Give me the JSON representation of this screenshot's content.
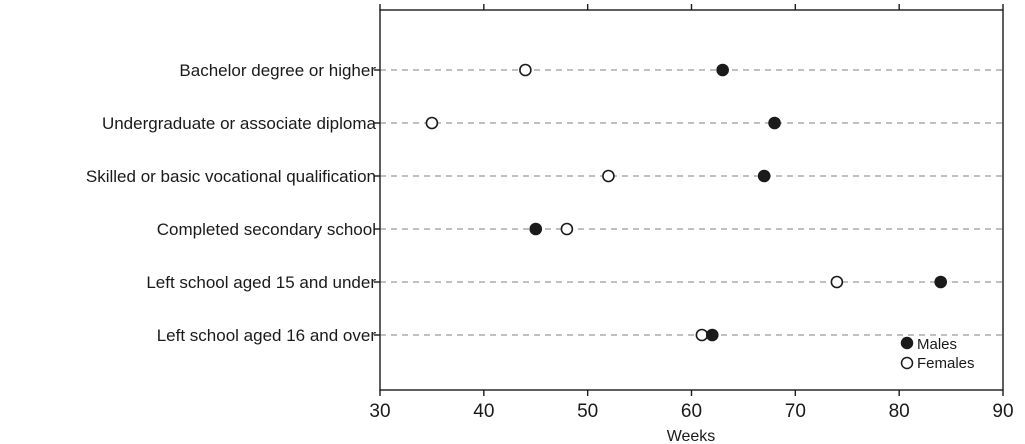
{
  "chart_data": {
    "type": "scatter",
    "title": "",
    "xlabel": "Weeks",
    "ylabel": "",
    "xlim": [
      30,
      90
    ],
    "xticks": [
      30,
      40,
      50,
      60,
      70,
      80,
      90
    ],
    "grid": "horizontal dashed",
    "legend_position": "bottom-right",
    "categories": [
      "Bachelor degree or higher",
      "Undergraduate or associate diploma",
      "Skilled or basic vocational qualification",
      "Completed secondary school",
      "Left school aged 15 and under",
      "Left school aged 16 and over"
    ],
    "series": [
      {
        "name": "Males",
        "marker": "filled-circle",
        "color": "#1a1a1a",
        "values": [
          63,
          68,
          67,
          45,
          84,
          62
        ]
      },
      {
        "name": "Females",
        "marker": "open-circle",
        "color": "#1a1a1a",
        "values": [
          44,
          35,
          52,
          48,
          74,
          61
        ]
      }
    ]
  }
}
